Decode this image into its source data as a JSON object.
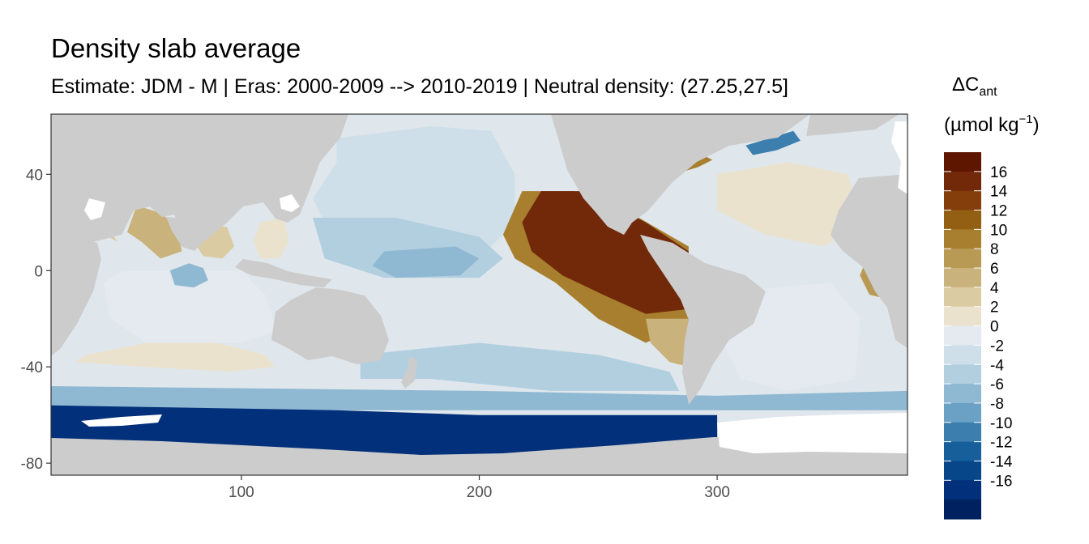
{
  "title": "Density slab average",
  "subtitle": "Estimate: JDM - M | Eras: 2000-2009 --> 2010-2019 | Neutral density: (27.25,27.5]",
  "chart_data": {
    "type": "heatmap",
    "title": "Density slab average",
    "subtitle": "Estimate: JDM - M | Eras: 2000-2009 --> 2010-2019 | Neutral density: (27.25,27.5]",
    "xlim": [
      20,
      380
    ],
    "ylim": [
      -85,
      65
    ],
    "x_ticks": [
      100,
      200,
      300
    ],
    "y_ticks": [
      40,
      0,
      -40,
      -80
    ],
    "x_tick_labels": [
      "100",
      "200",
      "300"
    ],
    "y_tick_labels": [
      "40",
      "0",
      "-40",
      "-80"
    ],
    "grid": false,
    "land_color": "#cccccc",
    "legend": {
      "position": "right",
      "title_main": "ΔC",
      "title_sub": "ant",
      "unit_open": "(µmol kg",
      "unit_sup": "−1",
      "unit_close": ")",
      "labels": [
        "16",
        "14",
        "12",
        "10",
        "8",
        "6",
        "4",
        "2",
        "0",
        "-2",
        "-4",
        "-6",
        "-8",
        "-10",
        "-12",
        "-14",
        "-16"
      ],
      "colors": [
        "#5f1600",
        "#71290a",
        "#833e0c",
        "#935f13",
        "#a87f2e",
        "#b99a54",
        "#cab27c",
        "#dbcba3",
        "#ebe2cd",
        "#e4eaef",
        "#cfdfea",
        "#b2cfe0",
        "#8fb8d2",
        "#6aa1c4",
        "#3c7fae",
        "#175f9a",
        "#08468a",
        "#03307a",
        "#00215f"
      ]
    },
    "regions": [
      {
        "name": "arabian-sea",
        "value": 6,
        "polygon": [
          [
            56,
            27
          ],
          [
            66,
            24
          ],
          [
            73,
            18
          ],
          [
            75,
            8
          ],
          [
            66,
            5
          ],
          [
            58,
            12
          ],
          [
            52,
            16
          ]
        ]
      },
      {
        "name": "red-sea",
        "value": 5,
        "polygon": [
          [
            40,
            16
          ],
          [
            46,
            13
          ],
          [
            48,
            12
          ],
          [
            42,
            20
          ],
          [
            36,
            24
          ],
          [
            34,
            27
          ]
        ]
      },
      {
        "name": "bay-of-bengal",
        "value": 4,
        "polygon": [
          [
            86,
            20
          ],
          [
            94,
            18
          ],
          [
            97,
            10
          ],
          [
            92,
            5
          ],
          [
            84,
            6
          ],
          [
            80,
            12
          ]
        ]
      },
      {
        "name": "south-china-sea",
        "value": 3,
        "polygon": [
          [
            108,
            20
          ],
          [
            118,
            22
          ],
          [
            120,
            12
          ],
          [
            116,
            5
          ],
          [
            108,
            5
          ],
          [
            105,
            12
          ]
        ]
      },
      {
        "name": "indian-ocean-central",
        "value": 0,
        "polygon": [
          [
            50,
            0
          ],
          [
            100,
            0
          ],
          [
            110,
            -10
          ],
          [
            115,
            -25
          ],
          [
            100,
            -30
          ],
          [
            60,
            -30
          ],
          [
            45,
            -20
          ],
          [
            42,
            -5
          ]
        ]
      },
      {
        "name": "indian-ocean-blob",
        "value": -6,
        "polygon": [
          [
            70,
            0
          ],
          [
            78,
            3
          ],
          [
            84,
            1
          ],
          [
            86,
            -4
          ],
          [
            80,
            -7
          ],
          [
            72,
            -6
          ]
        ]
      },
      {
        "name": "indian-south-band",
        "value": 3,
        "polygon": [
          [
            35,
            -35
          ],
          [
            60,
            -30
          ],
          [
            90,
            -30
          ],
          [
            110,
            -35
          ],
          [
            114,
            -40
          ],
          [
            95,
            -42
          ],
          [
            60,
            -40
          ],
          [
            30,
            -38
          ]
        ]
      },
      {
        "name": "north-pacific-light",
        "value": -2,
        "polygon": [
          [
            140,
            55
          ],
          [
            180,
            60
          ],
          [
            205,
            58
          ],
          [
            215,
            40
          ],
          [
            215,
            20
          ],
          [
            200,
            5
          ],
          [
            170,
            5
          ],
          [
            140,
            10
          ],
          [
            130,
            30
          ],
          [
            140,
            45
          ]
        ]
      },
      {
        "name": "pacific-equatorial",
        "value": -4,
        "polygon": [
          [
            130,
            22
          ],
          [
            165,
            22
          ],
          [
            200,
            14
          ],
          [
            210,
            5
          ],
          [
            200,
            -3
          ],
          [
            160,
            -3
          ],
          [
            135,
            5
          ]
        ]
      },
      {
        "name": "pacific-eq-blob",
        "value": -6,
        "polygon": [
          [
            160,
            8
          ],
          [
            190,
            10
          ],
          [
            200,
            5
          ],
          [
            192,
            -2
          ],
          [
            165,
            -3
          ],
          [
            155,
            2
          ]
        ]
      },
      {
        "name": "east-pacific-brown-edge",
        "value": 10,
        "polygon": [
          [
            218,
            33
          ],
          [
            240,
            33
          ],
          [
            260,
            26
          ],
          [
            288,
            10
          ],
          [
            288,
            -22
          ],
          [
            270,
            -30
          ],
          [
            250,
            -20
          ],
          [
            232,
            -5
          ],
          [
            215,
            5
          ],
          [
            210,
            15
          ]
        ]
      },
      {
        "name": "east-pacific-dark",
        "value": 16,
        "polygon": [
          [
            226,
            33
          ],
          [
            245,
            33
          ],
          [
            270,
            20
          ],
          [
            288,
            8
          ],
          [
            288,
            -16
          ],
          [
            270,
            -18
          ],
          [
            252,
            -10
          ],
          [
            235,
            -2
          ],
          [
            222,
            8
          ],
          [
            218,
            20
          ]
        ]
      },
      {
        "name": "east-pacific-south-tan",
        "value": 6,
        "polygon": [
          [
            270,
            -20
          ],
          [
            288,
            -20
          ],
          [
            288,
            -40
          ],
          [
            280,
            -38
          ],
          [
            272,
            -30
          ]
        ]
      },
      {
        "name": "south-pacific-band",
        "value": -4,
        "polygon": [
          [
            150,
            -35
          ],
          [
            200,
            -30
          ],
          [
            250,
            -35
          ],
          [
            280,
            -42
          ],
          [
            284,
            -50
          ],
          [
            230,
            -50
          ],
          [
            180,
            -45
          ],
          [
            150,
            -45
          ]
        ]
      },
      {
        "name": "atlantic-north-tan",
        "value": 2,
        "polygon": [
          [
            300,
            40
          ],
          [
            330,
            45
          ],
          [
            355,
            40
          ],
          [
            360,
            20
          ],
          [
            345,
            10
          ],
          [
            320,
            15
          ],
          [
            300,
            25
          ]
        ]
      },
      {
        "name": "atlantic-south-tan",
        "value": 1,
        "polygon": [
          [
            312,
            -8
          ],
          [
            348,
            -5
          ],
          [
            360,
            -20
          ],
          [
            358,
            -45
          ],
          [
            330,
            -50
          ],
          [
            310,
            -45
          ],
          [
            300,
            -25
          ]
        ]
      },
      {
        "name": "gulf-of-guinea",
        "value": 8,
        "polygon": [
          [
            362,
            3
          ],
          [
            372,
            3
          ],
          [
            375,
            -5
          ],
          [
            372,
            -12
          ],
          [
            364,
            -10
          ],
          [
            360,
            -2
          ]
        ]
      },
      {
        "name": "labrador-sea-blue",
        "value": -10,
        "polygon": [
          [
            312,
            52
          ],
          [
            322,
            55
          ],
          [
            332,
            58
          ],
          [
            335,
            54
          ],
          [
            325,
            50
          ],
          [
            315,
            48
          ]
        ]
      },
      {
        "name": "gulf-stream-brown",
        "value": 10,
        "polygon": [
          [
            282,
            40
          ],
          [
            292,
            43
          ],
          [
            298,
            46
          ],
          [
            294,
            48
          ],
          [
            286,
            44
          ],
          [
            280,
            42
          ]
        ]
      },
      {
        "name": "southern-ocean-blue",
        "value": -6,
        "polygon": [
          [
            20,
            -48
          ],
          [
            200,
            -50
          ],
          [
            300,
            -52
          ],
          [
            380,
            -50
          ],
          [
            380,
            -58
          ],
          [
            20,
            -58
          ]
        ]
      },
      {
        "name": "antarctic-deep",
        "value": -16,
        "polygon": [
          [
            20,
            -56
          ],
          [
            140,
            -58
          ],
          [
            200,
            -60
          ],
          [
            300,
            -60
          ],
          [
            300,
            -78
          ],
          [
            220,
            -78
          ],
          [
            200,
            -80
          ],
          [
            150,
            -78
          ],
          [
            20,
            -70
          ]
        ]
      }
    ]
  }
}
